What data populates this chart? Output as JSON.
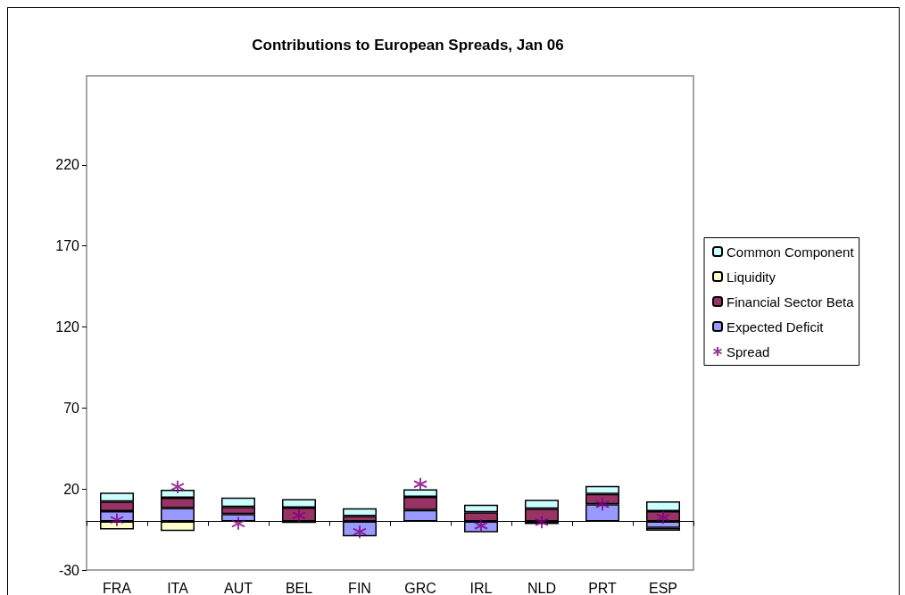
{
  "chart_data": {
    "type": "bar",
    "title": "Contributions to European Spreads, Jan 06",
    "categories": [
      "FRA",
      "ITA",
      "AUT",
      "BEL",
      "FIN",
      "GRC",
      "IRL",
      "NLD",
      "PRT",
      "ESP"
    ],
    "stacked": true,
    "series": [
      {
        "name": "Expected Deficit",
        "color": "#9999ff",
        "values": [
          6.4,
          8.2,
          4.6,
          -0.9,
          -9.2,
          7.0,
          -6.8,
          -1.6,
          10.6,
          -4.0
        ]
      },
      {
        "name": "Financial Sector Beta",
        "color": "#993366",
        "values": [
          5.9,
          6.4,
          4.4,
          8.6,
          3.3,
          8.2,
          5.7,
          7.9,
          6.4,
          6.4
        ]
      },
      {
        "name": "Liquidity",
        "color": "#ffffcc",
        "values": [
          -4.9,
          -5.9,
          null,
          null,
          null,
          null,
          null,
          null,
          null,
          -1.8
        ]
      },
      {
        "name": "Common Component",
        "color": "#ccffff",
        "values": [
          5.5,
          4.9,
          5.7,
          5.1,
          4.8,
          4.6,
          4.6,
          5.5,
          4.9,
          6.0
        ]
      },
      {
        "name": "Spread",
        "type": "scatter",
        "color": "#800080",
        "marker": "cross",
        "values": [
          0.9,
          21.4,
          -1.3,
          3.7,
          -6.4,
          23.0,
          -2.6,
          -0.4,
          10.6,
          2.4
        ]
      }
    ],
    "ylim": [
      -30,
      275
    ],
    "yticks": [
      -30,
      20,
      70,
      120,
      170,
      220
    ],
    "grid": false,
    "legend": "right"
  }
}
